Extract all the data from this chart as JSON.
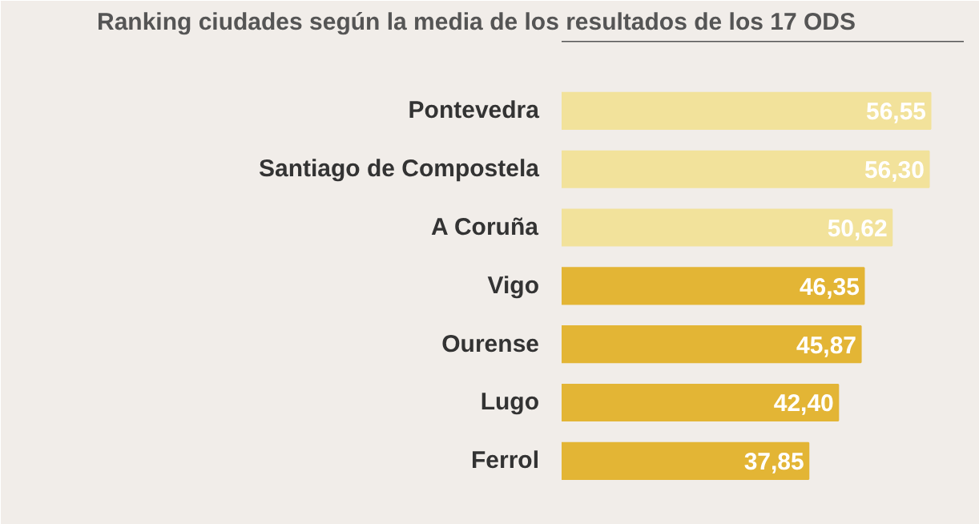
{
  "chart_data": {
    "type": "bar",
    "orientation": "horizontal",
    "title": "Ranking ciudades según la media de los resultados de los 17 ODS",
    "categories": [
      "Pontevedra",
      "Santiago de Compostela",
      "A Coruña",
      "Vigo",
      "Ourense",
      "Lugo",
      "Ferrol"
    ],
    "values": [
      56.55,
      56.3,
      50.62,
      46.35,
      45.87,
      42.4,
      37.85
    ],
    "value_labels": [
      "56,55",
      "56,30",
      "50,62",
      "46,35",
      "45,87",
      "42,40",
      "37,85"
    ],
    "colors": [
      "#f2e29b",
      "#f2e29b",
      "#f2e29b",
      "#e3b535",
      "#e3b535",
      "#e3b535",
      "#e3b535"
    ],
    "grid": false,
    "tick_labels": "y"
  }
}
